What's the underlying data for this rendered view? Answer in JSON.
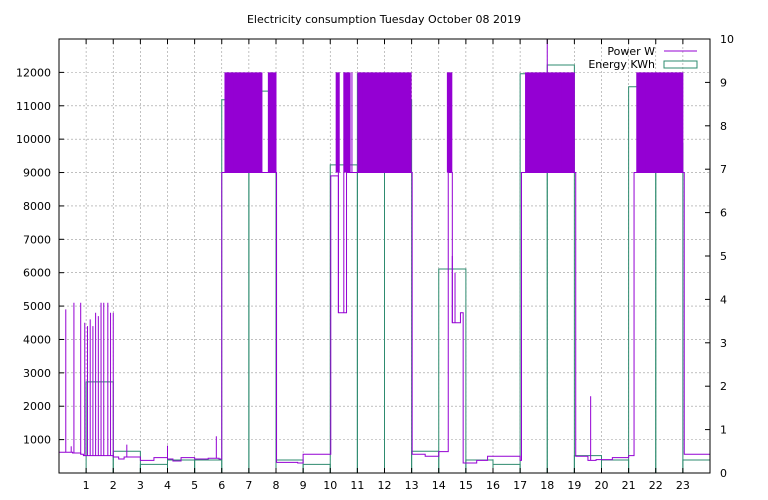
{
  "chart_data": {
    "title": "Electricity consumption Tuesday October 08 2019",
    "x_axis": {
      "min": 0,
      "max": 24,
      "ticks": [
        "1",
        "2",
        "3",
        "4",
        "5",
        "6",
        "7",
        "8",
        "9",
        "10",
        "11",
        "12",
        "13",
        "14",
        "15",
        "16",
        "17",
        "18",
        "19",
        "20",
        "21",
        "22",
        "23"
      ]
    },
    "y_axis_left": {
      "min": 0,
      "max": 13000,
      "ticks": [
        "1000",
        "2000",
        "3000",
        "4000",
        "5000",
        "6000",
        "7000",
        "8000",
        "9000",
        "10000",
        "11000",
        "12000"
      ]
    },
    "y_axis_right": {
      "min": 0,
      "max": 10,
      "ticks": [
        "0",
        "1",
        "2",
        "3",
        "4",
        "5",
        "6",
        "7",
        "8",
        "9",
        "10"
      ]
    },
    "grid": true,
    "legend_position": "top-right",
    "series": [
      {
        "name": "Power W",
        "type": "line",
        "axis": "left",
        "color": "#9400d3",
        "baseline": [
          [
            0,
            620
          ],
          [
            0.5,
            600
          ],
          [
            0.8,
            560
          ],
          [
            0.9,
            520
          ],
          [
            2.0,
            480
          ],
          [
            2.2,
            420
          ],
          [
            2.4,
            480
          ],
          [
            3.0,
            380
          ],
          [
            3.5,
            460
          ],
          [
            4.0,
            420
          ],
          [
            4.2,
            360
          ],
          [
            4.5,
            460
          ],
          [
            5.0,
            420
          ],
          [
            5.5,
            440
          ],
          [
            5.9,
            420
          ],
          [
            6.0,
            9000
          ],
          [
            8.0,
            9000
          ],
          [
            8.02,
            320
          ],
          [
            8.8,
            300
          ],
          [
            9.0,
            560
          ],
          [
            10.0,
            560
          ],
          [
            10.02,
            8900
          ],
          [
            10.3,
            4800
          ],
          [
            10.6,
            9000
          ],
          [
            13.0,
            9000
          ],
          [
            13.02,
            560
          ],
          [
            13.5,
            500
          ],
          [
            14.0,
            640
          ],
          [
            14.3,
            640
          ],
          [
            14.35,
            9000
          ],
          [
            14.5,
            4500
          ],
          [
            14.8,
            4800
          ],
          [
            14.9,
            300
          ],
          [
            15.4,
            380
          ],
          [
            15.8,
            500
          ],
          [
            16.4,
            500
          ],
          [
            17.0,
            380
          ],
          [
            17.05,
            9000
          ],
          [
            19.0,
            9000
          ],
          [
            19.05,
            500
          ],
          [
            19.5,
            380
          ],
          [
            19.8,
            400
          ],
          [
            20.4,
            460
          ],
          [
            20.8,
            460
          ],
          [
            21.0,
            520
          ],
          [
            21.2,
            9000
          ],
          [
            23.0,
            9000
          ],
          [
            23.05,
            560
          ],
          [
            24.0,
            560
          ]
        ],
        "spikes": [
          [
            0.25,
            4900
          ],
          [
            0.35,
            600
          ],
          [
            0.45,
            800
          ],
          [
            0.55,
            5100
          ],
          [
            0.8,
            5100
          ],
          [
            0.95,
            4500
          ],
          [
            1.05,
            4400
          ],
          [
            1.15,
            4600
          ],
          [
            1.25,
            4400
          ],
          [
            1.35,
            4800
          ],
          [
            1.45,
            4700
          ],
          [
            1.55,
            5100
          ],
          [
            1.65,
            5100
          ],
          [
            1.8,
            5100
          ],
          [
            1.9,
            4800
          ],
          [
            2.0,
            4800
          ],
          [
            2.5,
            850
          ],
          [
            4.0,
            820
          ],
          [
            5.8,
            1100
          ],
          [
            6.2,
            12000
          ],
          [
            6.4,
            12000
          ],
          [
            6.5,
            4700
          ],
          [
            6.6,
            12000
          ],
          [
            7.4,
            12000
          ],
          [
            7.8,
            12000
          ],
          [
            8.0,
            12000
          ],
          [
            10.2,
            5100
          ],
          [
            10.3,
            12000
          ],
          [
            10.5,
            12000
          ],
          [
            10.8,
            12000
          ],
          [
            11.2,
            12000
          ],
          [
            11.5,
            12000
          ],
          [
            12.0,
            12000
          ],
          [
            12.5,
            12000
          ],
          [
            12.7,
            4700
          ],
          [
            12.9,
            12000
          ],
          [
            14.4,
            12000
          ],
          [
            14.45,
            7200
          ],
          [
            14.5,
            6500
          ],
          [
            14.6,
            6000
          ],
          [
            17.2,
            12000
          ],
          [
            17.8,
            12000
          ],
          [
            18.0,
            13000
          ],
          [
            18.5,
            12000
          ],
          [
            18.8,
            5100
          ],
          [
            19.0,
            12000
          ],
          [
            19.6,
            2300
          ],
          [
            21.3,
            12000
          ],
          [
            21.6,
            12000
          ],
          [
            22.0,
            12000
          ],
          [
            22.3,
            4800
          ],
          [
            22.6,
            12000
          ],
          [
            22.9,
            4500
          ],
          [
            23.0,
            12000
          ]
        ],
        "dense_bands": [
          [
            6.1,
            7.5,
            9000,
            12000
          ],
          [
            7.7,
            8.0,
            9000,
            12000
          ],
          [
            10.2,
            10.35,
            9000,
            12000
          ],
          [
            10.5,
            10.75,
            9000,
            12000
          ],
          [
            11.0,
            13.0,
            9000,
            12000
          ],
          [
            14.3,
            14.5,
            9000,
            12000
          ],
          [
            17.2,
            19.0,
            9000,
            12000
          ],
          [
            21.3,
            23.0,
            9000,
            12000
          ]
        ]
      },
      {
        "name": "Energy KWh",
        "type": "histogram",
        "axis": "right",
        "color": "#2e8b6f",
        "values": [
          0.0,
          2.1,
          0.5,
          0.2,
          0.3,
          0.3,
          8.6,
          8.8,
          0.3,
          0.2,
          7.1,
          9.2,
          8.6,
          0.5,
          4.7,
          0.3,
          0.2,
          9.2,
          9.4,
          0.4,
          0.3,
          8.9,
          7.6,
          0.3
        ]
      }
    ]
  }
}
